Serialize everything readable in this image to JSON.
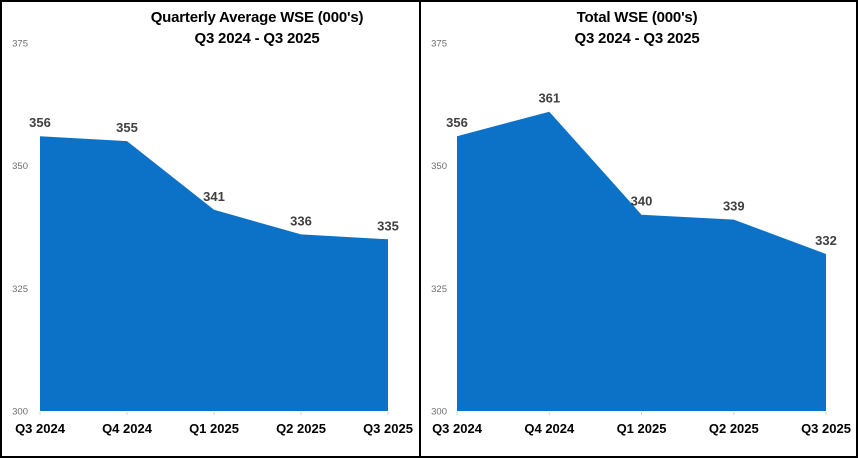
{
  "figure": {
    "description": "Two side-by-side filled area charts of WSE counts by quarter"
  },
  "chart_data": [
    {
      "type": "area",
      "title": "Quarterly Average WSE (000's)",
      "subtitle": "Q3 2024 - Q3 2025",
      "categories": [
        "Q3 2024",
        "Q4 2024",
        "Q1 2025",
        "Q2 2025",
        "Q3 2025"
      ],
      "values": [
        356,
        355,
        341,
        336,
        335
      ],
      "ylim": [
        300,
        375
      ],
      "yticks": [
        375,
        350,
        325,
        300
      ],
      "grid": false,
      "legend": "none",
      "colors": {
        "fill": "#0C72C7",
        "data_label": "#404040",
        "axis_tick_label": "#6E6E6E",
        "x_label": "#000000"
      }
    },
    {
      "type": "area",
      "title": "Total WSE (000's)",
      "subtitle": "Q3 2024 - Q3 2025",
      "categories": [
        "Q3 2024",
        "Q4 2024",
        "Q1 2025",
        "Q2 2025",
        "Q3 2025"
      ],
      "values": [
        356,
        361,
        340,
        339,
        332
      ],
      "ylim": [
        300,
        375
      ],
      "yticks": [
        375,
        350,
        325,
        300
      ],
      "grid": false,
      "legend": "none",
      "colors": {
        "fill": "#0C72C7",
        "data_label": "#404040",
        "axis_tick_label": "#6E6E6E",
        "x_label": "#000000"
      }
    }
  ]
}
